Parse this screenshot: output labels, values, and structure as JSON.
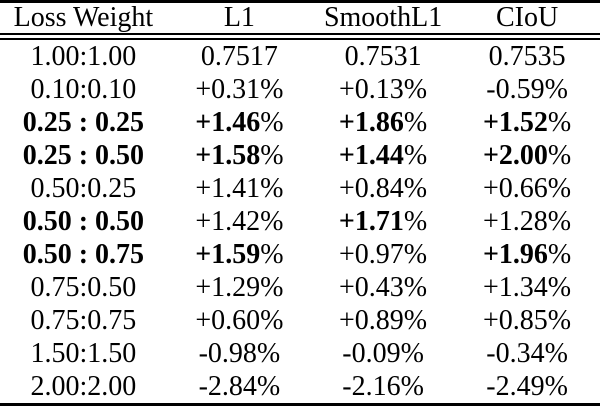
{
  "chart_data": {
    "type": "table",
    "columns": [
      "Loss Weight",
      "L1",
      "SmoothL1",
      "CIoU"
    ],
    "rows": [
      {
        "cells": [
          {
            "text": "1.00:1.00",
            "bold": false
          },
          {
            "text": "0.7517",
            "bold": false
          },
          {
            "text": "0.7531",
            "bold": false
          },
          {
            "text": "0.7535",
            "bold": false
          }
        ]
      },
      {
        "cells": [
          {
            "text": "0.10:0.10",
            "bold": false
          },
          {
            "text": "+0.31%",
            "bold": false
          },
          {
            "text": "+0.13%",
            "bold": false
          },
          {
            "text": "-0.59%",
            "bold": false
          }
        ]
      },
      {
        "cells": [
          {
            "text": "0.25 : 0.25",
            "bold": true
          },
          {
            "text": "+1.46%",
            "bold": true
          },
          {
            "text": "+1.86%",
            "bold": true
          },
          {
            "text": "+1.52%",
            "bold": true
          }
        ]
      },
      {
        "cells": [
          {
            "text": "0.25 : 0.50",
            "bold": true
          },
          {
            "text": "+1.58%",
            "bold": true
          },
          {
            "text": "+1.44%",
            "bold": true
          },
          {
            "text": "+2.00%",
            "bold": true
          }
        ]
      },
      {
        "cells": [
          {
            "text": "0.50:0.25",
            "bold": false
          },
          {
            "text": "+1.41%",
            "bold": false
          },
          {
            "text": "+0.84%",
            "bold": false
          },
          {
            "text": "+0.66%",
            "bold": false
          }
        ]
      },
      {
        "cells": [
          {
            "text": "0.50 : 0.50",
            "bold": true
          },
          {
            "text": "+1.42%",
            "bold": false
          },
          {
            "text": "+1.71%",
            "bold": true
          },
          {
            "text": "+1.28%",
            "bold": false
          }
        ]
      },
      {
        "cells": [
          {
            "text": "0.50 : 0.75",
            "bold": true
          },
          {
            "text": "+1.59%",
            "bold": true
          },
          {
            "text": "+0.97%",
            "bold": false
          },
          {
            "text": "+1.96%",
            "bold": true
          }
        ]
      },
      {
        "cells": [
          {
            "text": "0.75:0.50",
            "bold": false
          },
          {
            "text": "+1.29%",
            "bold": false
          },
          {
            "text": "+0.43%",
            "bold": false
          },
          {
            "text": "+1.34%",
            "bold": false
          }
        ]
      },
      {
        "cells": [
          {
            "text": "0.75:0.75",
            "bold": false
          },
          {
            "text": "+0.60%",
            "bold": false
          },
          {
            "text": "+0.89%",
            "bold": false
          },
          {
            "text": "+0.85%",
            "bold": false
          }
        ]
      },
      {
        "cells": [
          {
            "text": "1.50:1.50",
            "bold": false
          },
          {
            "text": "-0.98%",
            "bold": false
          },
          {
            "text": "-0.09%",
            "bold": false
          },
          {
            "text": "-0.34%",
            "bold": false
          }
        ]
      },
      {
        "cells": [
          {
            "text": "2.00:2.00",
            "bold": false
          },
          {
            "text": "-2.84%",
            "bold": false
          },
          {
            "text": "-2.16%",
            "bold": false
          },
          {
            "text": "-2.49%",
            "bold": false
          }
        ]
      }
    ]
  },
  "colors": {
    "text": "#000000",
    "background": "#ffffff",
    "rule": "#000000"
  }
}
